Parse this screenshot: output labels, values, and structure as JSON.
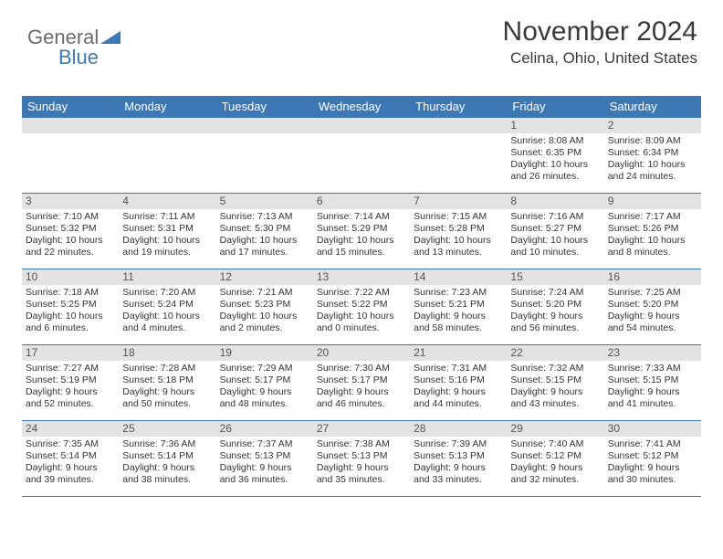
{
  "logo": {
    "part1": "General",
    "part2": "Blue"
  },
  "header": {
    "title": "November 2024",
    "location": "Celina, Ohio, United States"
  },
  "colors": {
    "header_bar": "#3b78b5",
    "day_num_bg": "#e3e3e3",
    "row_border": "#3b78b5",
    "text": "#333333",
    "logo_gray": "#6c6c6c",
    "logo_blue": "#3b78b5"
  },
  "weekdays": [
    "Sunday",
    "Monday",
    "Tuesday",
    "Wednesday",
    "Thursday",
    "Friday",
    "Saturday"
  ],
  "weeks": [
    [
      {
        "n": "",
        "sr": "",
        "ss": "",
        "dl": ""
      },
      {
        "n": "",
        "sr": "",
        "ss": "",
        "dl": ""
      },
      {
        "n": "",
        "sr": "",
        "ss": "",
        "dl": ""
      },
      {
        "n": "",
        "sr": "",
        "ss": "",
        "dl": ""
      },
      {
        "n": "",
        "sr": "",
        "ss": "",
        "dl": ""
      },
      {
        "n": "1",
        "sr": "Sunrise: 8:08 AM",
        "ss": "Sunset: 6:35 PM",
        "dl": "Daylight: 10 hours and 26 minutes."
      },
      {
        "n": "2",
        "sr": "Sunrise: 8:09 AM",
        "ss": "Sunset: 6:34 PM",
        "dl": "Daylight: 10 hours and 24 minutes."
      }
    ],
    [
      {
        "n": "3",
        "sr": "Sunrise: 7:10 AM",
        "ss": "Sunset: 5:32 PM",
        "dl": "Daylight: 10 hours and 22 minutes."
      },
      {
        "n": "4",
        "sr": "Sunrise: 7:11 AM",
        "ss": "Sunset: 5:31 PM",
        "dl": "Daylight: 10 hours and 19 minutes."
      },
      {
        "n": "5",
        "sr": "Sunrise: 7:13 AM",
        "ss": "Sunset: 5:30 PM",
        "dl": "Daylight: 10 hours and 17 minutes."
      },
      {
        "n": "6",
        "sr": "Sunrise: 7:14 AM",
        "ss": "Sunset: 5:29 PM",
        "dl": "Daylight: 10 hours and 15 minutes."
      },
      {
        "n": "7",
        "sr": "Sunrise: 7:15 AM",
        "ss": "Sunset: 5:28 PM",
        "dl": "Daylight: 10 hours and 13 minutes."
      },
      {
        "n": "8",
        "sr": "Sunrise: 7:16 AM",
        "ss": "Sunset: 5:27 PM",
        "dl": "Daylight: 10 hours and 10 minutes."
      },
      {
        "n": "9",
        "sr": "Sunrise: 7:17 AM",
        "ss": "Sunset: 5:26 PM",
        "dl": "Daylight: 10 hours and 8 minutes."
      }
    ],
    [
      {
        "n": "10",
        "sr": "Sunrise: 7:18 AM",
        "ss": "Sunset: 5:25 PM",
        "dl": "Daylight: 10 hours and 6 minutes."
      },
      {
        "n": "11",
        "sr": "Sunrise: 7:20 AM",
        "ss": "Sunset: 5:24 PM",
        "dl": "Daylight: 10 hours and 4 minutes."
      },
      {
        "n": "12",
        "sr": "Sunrise: 7:21 AM",
        "ss": "Sunset: 5:23 PM",
        "dl": "Daylight: 10 hours and 2 minutes."
      },
      {
        "n": "13",
        "sr": "Sunrise: 7:22 AM",
        "ss": "Sunset: 5:22 PM",
        "dl": "Daylight: 10 hours and 0 minutes."
      },
      {
        "n": "14",
        "sr": "Sunrise: 7:23 AM",
        "ss": "Sunset: 5:21 PM",
        "dl": "Daylight: 9 hours and 58 minutes."
      },
      {
        "n": "15",
        "sr": "Sunrise: 7:24 AM",
        "ss": "Sunset: 5:20 PM",
        "dl": "Daylight: 9 hours and 56 minutes."
      },
      {
        "n": "16",
        "sr": "Sunrise: 7:25 AM",
        "ss": "Sunset: 5:20 PM",
        "dl": "Daylight: 9 hours and 54 minutes."
      }
    ],
    [
      {
        "n": "17",
        "sr": "Sunrise: 7:27 AM",
        "ss": "Sunset: 5:19 PM",
        "dl": "Daylight: 9 hours and 52 minutes."
      },
      {
        "n": "18",
        "sr": "Sunrise: 7:28 AM",
        "ss": "Sunset: 5:18 PM",
        "dl": "Daylight: 9 hours and 50 minutes."
      },
      {
        "n": "19",
        "sr": "Sunrise: 7:29 AM",
        "ss": "Sunset: 5:17 PM",
        "dl": "Daylight: 9 hours and 48 minutes."
      },
      {
        "n": "20",
        "sr": "Sunrise: 7:30 AM",
        "ss": "Sunset: 5:17 PM",
        "dl": "Daylight: 9 hours and 46 minutes."
      },
      {
        "n": "21",
        "sr": "Sunrise: 7:31 AM",
        "ss": "Sunset: 5:16 PM",
        "dl": "Daylight: 9 hours and 44 minutes."
      },
      {
        "n": "22",
        "sr": "Sunrise: 7:32 AM",
        "ss": "Sunset: 5:15 PM",
        "dl": "Daylight: 9 hours and 43 minutes."
      },
      {
        "n": "23",
        "sr": "Sunrise: 7:33 AM",
        "ss": "Sunset: 5:15 PM",
        "dl": "Daylight: 9 hours and 41 minutes."
      }
    ],
    [
      {
        "n": "24",
        "sr": "Sunrise: 7:35 AM",
        "ss": "Sunset: 5:14 PM",
        "dl": "Daylight: 9 hours and 39 minutes."
      },
      {
        "n": "25",
        "sr": "Sunrise: 7:36 AM",
        "ss": "Sunset: 5:14 PM",
        "dl": "Daylight: 9 hours and 38 minutes."
      },
      {
        "n": "26",
        "sr": "Sunrise: 7:37 AM",
        "ss": "Sunset: 5:13 PM",
        "dl": "Daylight: 9 hours and 36 minutes."
      },
      {
        "n": "27",
        "sr": "Sunrise: 7:38 AM",
        "ss": "Sunset: 5:13 PM",
        "dl": "Daylight: 9 hours and 35 minutes."
      },
      {
        "n": "28",
        "sr": "Sunrise: 7:39 AM",
        "ss": "Sunset: 5:13 PM",
        "dl": "Daylight: 9 hours and 33 minutes."
      },
      {
        "n": "29",
        "sr": "Sunrise: 7:40 AM",
        "ss": "Sunset: 5:12 PM",
        "dl": "Daylight: 9 hours and 32 minutes."
      },
      {
        "n": "30",
        "sr": "Sunrise: 7:41 AM",
        "ss": "Sunset: 5:12 PM",
        "dl": "Daylight: 9 hours and 30 minutes."
      }
    ]
  ]
}
